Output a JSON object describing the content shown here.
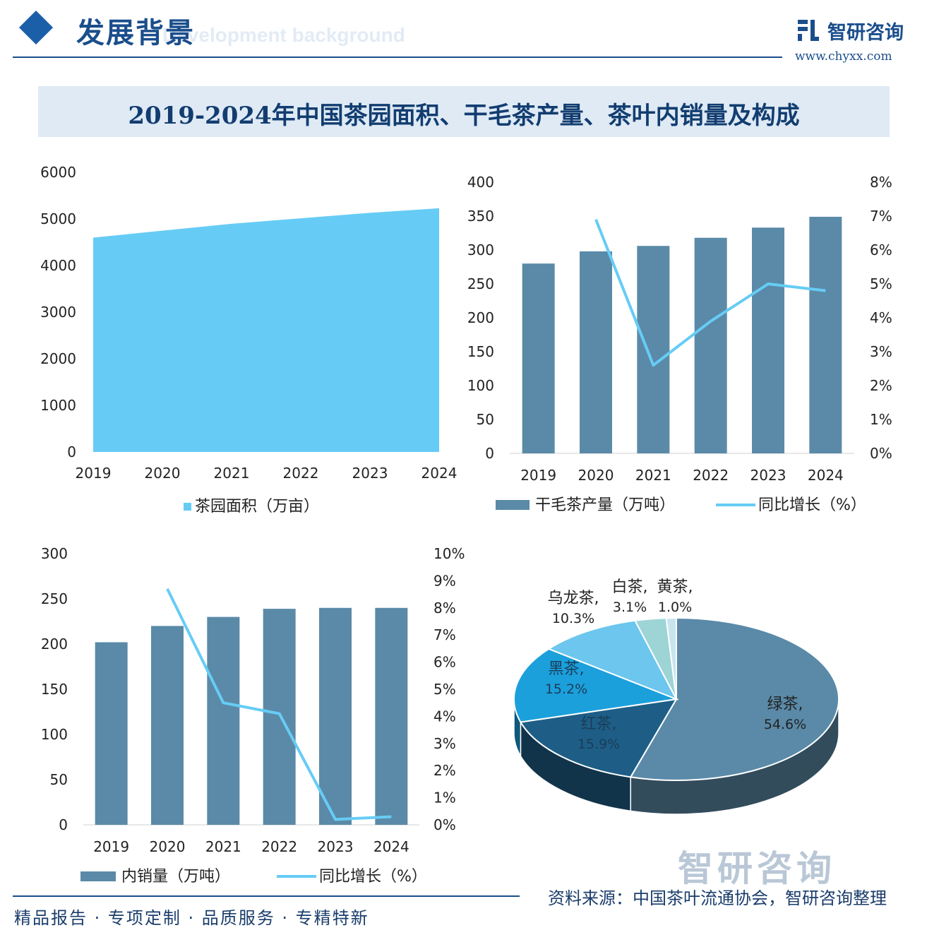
{
  "header": {
    "title": "发展背景",
    "subtitle_en": "Development background",
    "logo_name": "智研咨询",
    "logo_url": "www.chyxx.com"
  },
  "main_title": "2019-2024年中国茶园面积、干毛茶产量、茶叶内销量及构成",
  "colors": {
    "area": "#66ccf5",
    "bar": "#5a8aa8",
    "line": "#66ccf5",
    "navy": "#1a4e8c"
  },
  "chart_data": [
    {
      "type": "area",
      "categories": [
        "2019",
        "2020",
        "2021",
        "2022",
        "2023",
        "2024"
      ],
      "series": [
        {
          "name": "茶园面积（万亩）",
          "values": [
            4598,
            4748,
            4896,
            5014,
            5131,
            5229
          ]
        }
      ],
      "yticks": [
        "0",
        "1000",
        "2000",
        "3000",
        "4000",
        "5000",
        "6000"
      ],
      "ylim": [
        0,
        6000
      ]
    },
    {
      "type": "bar",
      "categories": [
        "2019",
        "2020",
        "2021",
        "2022",
        "2023",
        "2024"
      ],
      "series": [
        {
          "name": "干毛茶产量（万吨）",
          "type": "bar",
          "values": [
            280,
            298,
            306,
            318,
            333,
            349
          ]
        },
        {
          "name": "同比增长（%）",
          "type": "line",
          "axis": "right",
          "values": [
            null,
            6.9,
            2.6,
            3.9,
            5.0,
            4.8
          ]
        }
      ],
      "yticks": [
        "0",
        "50",
        "100",
        "150",
        "200",
        "250",
        "300",
        "350",
        "400"
      ],
      "ylim": [
        0,
        400
      ],
      "y2ticks": [
        "0%",
        "1%",
        "2%",
        "3%",
        "4%",
        "5%",
        "6%",
        "7%",
        "8%"
      ],
      "y2lim": [
        0,
        8
      ]
    },
    {
      "type": "bar",
      "categories": [
        "2019",
        "2020",
        "2021",
        "2022",
        "2023",
        "2024"
      ],
      "series": [
        {
          "name": "内销量（万吨）",
          "type": "bar",
          "values": [
            202,
            220,
            230,
            239,
            240,
            240
          ]
        },
        {
          "name": "同比增长（%）",
          "type": "line",
          "axis": "right",
          "values": [
            null,
            8.7,
            4.5,
            4.1,
            0.2,
            0.3
          ]
        }
      ],
      "yticks": [
        "0",
        "50",
        "100",
        "150",
        "200",
        "250",
        "300"
      ],
      "ylim": [
        0,
        300
      ],
      "y2ticks": [
        "0%",
        "1%",
        "2%",
        "3%",
        "4%",
        "5%",
        "6%",
        "7%",
        "8%",
        "9%",
        "10%"
      ],
      "y2lim": [
        0,
        10
      ]
    },
    {
      "type": "pie",
      "slices": [
        {
          "name": "绿茶,",
          "label": "54.6%",
          "value": 54.6,
          "color": "#5a8aa8"
        },
        {
          "name": "红茶,",
          "label": "15.9%",
          "value": 15.9,
          "color": "#1e5e86"
        },
        {
          "name": "黑茶,",
          "label": "15.2%",
          "value": 15.2,
          "color": "#1ba0dc"
        },
        {
          "name": "乌龙茶,",
          "label": "10.3%",
          "value": 10.3,
          "color": "#6cc6ee"
        },
        {
          "name": "白茶,",
          "label": "3.1%",
          "value": 3.1,
          "color": "#9dd4d6"
        },
        {
          "name": "黄茶,",
          "label": "1.0%",
          "value": 1.0,
          "color": "#c8e4ef"
        }
      ]
    }
  ],
  "footer": {
    "left": "精品报告 · 专项定制 · 品质服务 · 专精特新",
    "source": "资料来源：中国茶叶流通协会，智研咨询整理",
    "watermark": "智研咨询"
  }
}
